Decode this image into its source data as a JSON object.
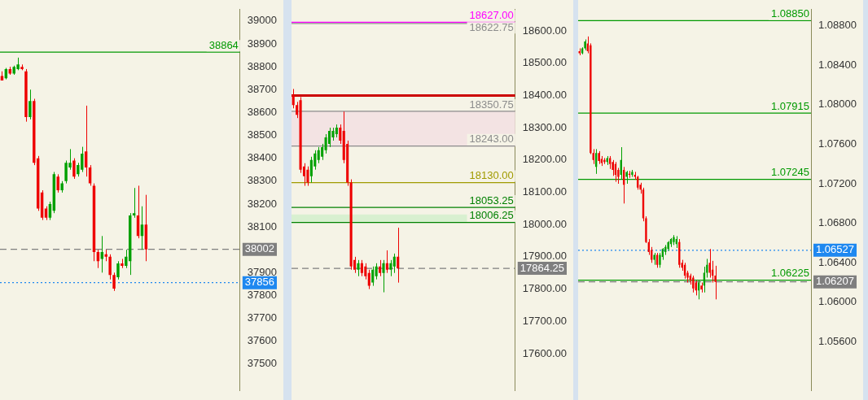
{
  "chart_data": [
    {
      "type": "candlestick",
      "tick_labels": "y",
      "categories": [
        null,
        null,
        null,
        null,
        null,
        null,
        null,
        null,
        null,
        null,
        null,
        null,
        null,
        null,
        null,
        null,
        null,
        null,
        null,
        null,
        null,
        null,
        null,
        null,
        null,
        null,
        null,
        null,
        null,
        null,
        null,
        null,
        null,
        null,
        null,
        null,
        null,
        null,
        null,
        null,
        null,
        null,
        null,
        null,
        null,
        null,
        null,
        null,
        null,
        null,
        null,
        null,
        null,
        null,
        null,
        null,
        null,
        null,
        null,
        null
      ],
      "ohlc": [
        [
          38760,
          38780,
          38740,
          38740
        ],
        [
          38750,
          38795,
          38745,
          38790
        ],
        [
          38790,
          38800,
          38765,
          38770
        ],
        [
          38770,
          38805,
          38765,
          38800
        ],
        [
          38790,
          38840,
          38785,
          38810
        ],
        [
          38800,
          38810,
          38785,
          38790
        ],
        [
          38780,
          38790,
          38560,
          38580
        ],
        [
          38580,
          38700,
          38570,
          38650
        ],
        [
          38650,
          38660,
          38370,
          38380
        ],
        [
          38400,
          38410,
          38170,
          38180
        ],
        [
          38250,
          38260,
          38130,
          38140
        ],
        [
          38180,
          38190,
          38130,
          38140
        ],
        [
          38140,
          38210,
          38130,
          38200
        ],
        [
          38170,
          38340,
          38160,
          38330
        ],
        [
          38320,
          38330,
          38250,
          38260
        ],
        [
          38260,
          38300,
          38250,
          38290
        ],
        [
          38300,
          38390,
          38290,
          38380
        ],
        [
          38360,
          38440,
          38350,
          38380
        ],
        [
          38390,
          38400,
          38310,
          38320
        ],
        [
          38330,
          38380,
          38320,
          38370
        ],
        [
          38350,
          38450,
          38340,
          38420
        ],
        [
          38430,
          38630,
          38320,
          38360
        ],
        [
          38360,
          38370,
          38280,
          38290
        ],
        [
          38280,
          38290,
          37950,
          37990
        ],
        [
          37990,
          38000,
          37920,
          37950
        ],
        [
          37960,
          38060,
          37900,
          37990
        ],
        [
          37980,
          38000,
          37950,
          37970
        ],
        [
          37970,
          37980,
          37870,
          37890
        ],
        [
          37890,
          37900,
          37820,
          37830
        ],
        [
          37880,
          37950,
          37870,
          37940
        ],
        [
          37940,
          37960,
          37920,
          37930
        ],
        [
          37930,
          38000,
          37920,
          37970
        ],
        [
          37950,
          38160,
          37890,
          38150
        ],
        [
          38150,
          38270,
          38140,
          38160
        ],
        [
          38150,
          38280,
          38050,
          38060
        ],
        [
          38060,
          38190,
          38000,
          38110
        ],
        [
          38110,
          38240,
          37950,
          38002
        ],
        null,
        null,
        null,
        null,
        null,
        null,
        null,
        null,
        null,
        null,
        null,
        null,
        null,
        null,
        null,
        null,
        null,
        null,
        null,
        null,
        null,
        null,
        null
      ],
      "colors": [
        "#ee0000",
        "#00a000",
        "#ee0000",
        "#00a000",
        "#00a000",
        "#ee0000",
        "#ee0000",
        "#00a000",
        "#ee0000",
        "#ee0000",
        "#ee0000",
        "#ee0000",
        "#00a000",
        "#00a000",
        "#ee0000",
        "#00a000",
        "#00a000",
        "#00a000",
        "#ee0000",
        "#00a000",
        "#00a000",
        "#ee0000",
        "#ee0000",
        "#ee0000",
        "#ee0000",
        "#00a000",
        "#ee0000",
        "#ee0000",
        "#ee0000",
        "#00a000",
        "#ee0000",
        "#00a000",
        "#00a000",
        "#00a000",
        "#ee0000",
        "#00a000",
        "#ee0000",
        null,
        null,
        null,
        null,
        null,
        null,
        null,
        null,
        null,
        null,
        null,
        null,
        null,
        null,
        null,
        null,
        null,
        null,
        null,
        null,
        null,
        null,
        null
      ],
      "ylim": [
        37385,
        39050
      ],
      "yticks": [
        37500,
        37600,
        37700,
        37800,
        37900,
        38100,
        38200,
        38300,
        38400,
        38500,
        38600,
        38700,
        38800,
        38900,
        39000
      ],
      "ref_lines": [
        {
          "axis": "y",
          "value": 38864,
          "label": "38864",
          "color": "#009900",
          "line_style": "solid"
        },
        {
          "axis": "y",
          "value": 38002,
          "label": "38002",
          "color": "#7f7f7f",
          "line_style": "dashed"
        },
        {
          "axis": "y",
          "value": 37856,
          "label": "37856",
          "color": "#1e88f0",
          "line_style": "dotted"
        }
      ]
    },
    {
      "type": "candlestick",
      "tick_labels": "y",
      "categories": [
        null,
        null,
        null,
        null,
        null,
        null,
        null,
        null,
        null,
        null,
        null,
        null,
        null,
        null,
        null,
        null,
        null,
        null,
        null,
        null,
        null,
        null,
        null,
        null,
        null,
        null,
        null,
        null,
        null,
        null,
        null,
        null,
        null,
        null,
        null,
        null,
        null,
        null,
        null,
        null,
        null,
        null,
        null,
        null,
        null,
        null,
        null,
        null,
        null,
        null,
        null,
        null,
        null,
        null,
        null,
        null,
        null,
        null,
        null,
        null,
        null,
        null
      ],
      "ohlc": [
        [
          18400,
          18420,
          18360,
          18370
        ],
        [
          18370,
          18380,
          18330,
          18340
        ],
        [
          18385,
          18395,
          18160,
          18170
        ],
        [
          18180,
          18190,
          18120,
          18150
        ],
        [
          18170,
          18180,
          18120,
          18130
        ],
        [
          18150,
          18210,
          18130,
          18200
        ],
        [
          18180,
          18230,
          18170,
          18220
        ],
        [
          18200,
          18240,
          18190,
          18230
        ],
        [
          18210,
          18250,
          18200,
          18240
        ],
        [
          18230,
          18280,
          18220,
          18270
        ],
        [
          18250,
          18300,
          18240,
          18290
        ],
        [
          18270,
          18300,
          18260,
          18290
        ],
        [
          18280,
          18310,
          18270,
          18300
        ],
        [
          18300,
          18310,
          18250,
          18260
        ],
        [
          18290,
          18350,
          18190,
          18200
        ],
        [
          18250,
          18260,
          18120,
          18130
        ],
        [
          18130,
          18140,
          17860,
          17870
        ],
        [
          17890,
          17900,
          17850,
          17860
        ],
        [
          17860,
          17890,
          17840,
          17880
        ],
        [
          17880,
          17890,
          17840,
          17850
        ],
        [
          17870,
          17880,
          17830,
          17840
        ],
        [
          17850,
          17860,
          17800,
          17810
        ],
        [
          17820,
          17870,
          17810,
          17860
        ],
        [
          17840,
          17880,
          17830,
          17870
        ],
        [
          17870,
          17890,
          17840,
          17850
        ],
        [
          17850,
          17890,
          17790,
          17880
        ],
        [
          17880,
          17920,
          17850,
          17860
        ],
        [
          17860,
          17890,
          17840,
          17880
        ],
        [
          17870,
          17910,
          17850,
          17900
        ],
        [
          17900,
          17990,
          17820,
          17864.25
        ],
        null,
        null,
        null,
        null,
        null,
        null,
        null,
        null,
        null,
        null,
        null,
        null,
        null,
        null,
        null,
        null,
        null,
        null,
        null,
        null,
        null,
        null,
        null,
        null,
        null,
        null,
        null,
        null,
        null,
        null,
        null,
        null
      ],
      "colors": [
        "#ee0000",
        "#ee0000",
        "#ee0000",
        "#ee0000",
        "#ee0000",
        "#00a000",
        "#00a000",
        "#00a000",
        "#00a000",
        "#00a000",
        "#00a000",
        "#00a000",
        "#00a000",
        "#ee0000",
        "#ee0000",
        "#ee0000",
        "#ee0000",
        "#ee0000",
        "#00a000",
        "#ee0000",
        "#ee0000",
        "#ee0000",
        "#00a000",
        "#00a000",
        "#ee0000",
        "#00a000",
        "#ee0000",
        "#00a000",
        "#00a000",
        "#ee0000",
        null,
        null,
        null,
        null,
        null,
        null,
        null,
        null,
        null,
        null,
        null,
        null,
        null,
        null,
        null,
        null,
        null,
        null,
        null,
        null,
        null,
        null,
        null,
        null,
        null,
        null,
        null,
        null,
        null,
        null,
        null,
        null
      ],
      "ylim": [
        17486,
        18666
      ],
      "yticks": [
        {
          "value": 17600,
          "label": "17600.00"
        },
        {
          "value": 17700,
          "label": "17700.00"
        },
        {
          "value": 17800,
          "label": "17800.00"
        },
        {
          "value": 17900,
          "label": "17900.00"
        },
        {
          "value": 18000,
          "label": "18000.00"
        },
        {
          "value": 18100,
          "label": "18100.00"
        },
        {
          "value": 18200,
          "label": "18200.00"
        },
        {
          "value": 18300,
          "label": "18300.00"
        },
        {
          "value": 18400,
          "label": "18400.00"
        },
        {
          "value": 18500,
          "label": "18500.00"
        },
        {
          "value": 18600,
          "label": "18600.00"
        }
      ],
      "bands": [
        {
          "axis": "y",
          "from": 18243,
          "to": 18350.75,
          "color": "#f3e3e3"
        },
        {
          "axis": "y",
          "from": 18006.25,
          "to": 18030,
          "color": "#d8f0d0"
        }
      ],
      "ref_lines": [
        {
          "axis": "y",
          "value": 18627,
          "label": "18627.00",
          "color": "#ff00ff",
          "line_style": "solid"
        },
        {
          "axis": "y",
          "value": 18622.75,
          "label": "18622.75",
          "color": "#8c8c8c",
          "line_style": "solid"
        },
        {
          "axis": "y",
          "value": 18400,
          "color": "#cc0000",
          "line_style": "solid"
        },
        {
          "axis": "y",
          "value": 18350.75,
          "label": "18350.75",
          "color": "#8c8c8c",
          "line_style": "solid"
        },
        {
          "axis": "y",
          "value": 18243,
          "label": "18243.00",
          "color": "#8c8c8c",
          "line_style": "solid"
        },
        {
          "axis": "y",
          "value": 18130,
          "label": "18130.00",
          "color": "#a09a00",
          "line_style": "solid"
        },
        {
          "axis": "y",
          "value": 18053.25,
          "label": "18053.25",
          "color": "#008000",
          "line_style": "solid"
        },
        {
          "axis": "y",
          "value": 18006.25,
          "label": "18006.25",
          "color": "#008000",
          "line_style": "solid"
        },
        {
          "axis": "y",
          "value": 17864.25,
          "label": "17864.25",
          "color": "#7f7f7f",
          "line_style": "dashed"
        }
      ]
    },
    {
      "type": "candlestick",
      "tick_labels": "y",
      "categories": [
        null,
        null,
        null,
        null,
        null,
        null,
        null,
        null,
        null,
        null,
        null,
        null,
        null,
        null,
        null,
        null,
        null,
        null,
        null,
        null,
        null,
        null,
        null,
        null,
        null,
        null,
        null,
        null,
        null,
        null,
        null,
        null,
        null,
        null,
        null,
        null,
        null,
        null,
        null,
        null,
        null,
        null,
        null,
        null,
        null,
        null,
        null,
        null,
        null,
        null,
        null,
        null,
        null,
        null,
        null,
        null,
        null,
        null,
        null,
        null,
        null,
        null,
        null,
        null,
        null,
        null,
        null,
        null,
        null,
        null,
        null,
        null,
        null,
        null,
        null,
        null,
        null,
        null,
        null,
        null,
        null,
        null,
        null,
        null
      ],
      "ohlc": [
        [
          1.0854,
          1.0857,
          1.085,
          1.0852
        ],
        [
          1.0852,
          1.0858,
          1.0851,
          1.0857
        ],
        [
          1.0857,
          1.0866,
          1.0855,
          1.0864
        ],
        [
          1.0862,
          1.0869,
          1.0852,
          1.0854
        ],
        [
          1.086,
          1.0862,
          1.075,
          1.0751
        ],
        [
          1.0751,
          1.0755,
          1.074,
          1.0744
        ],
        [
          1.0737,
          1.0755,
          1.073,
          1.0751
        ],
        [
          1.0751,
          1.0753,
          1.074,
          1.0743
        ],
        [
          1.0745,
          1.0748,
          1.0738,
          1.0741
        ],
        [
          1.0744,
          1.0746,
          1.074,
          1.0742
        ],
        [
          1.0742,
          1.0748,
          1.0739,
          1.0746
        ],
        [
          1.0746,
          1.0748,
          1.0735,
          1.074
        ],
        [
          1.0742,
          1.0744,
          1.0728,
          1.0734
        ],
        [
          1.074,
          1.0742,
          1.0722,
          1.0729
        ],
        [
          1.0734,
          1.0736,
          1.072,
          1.0727
        ],
        [
          1.0729,
          1.0757,
          1.0725,
          1.0744
        ],
        [
          1.0734,
          1.0737,
          1.07,
          1.0719
        ],
        [
          1.0727,
          1.0733,
          1.072,
          1.0732
        ],
        [
          1.073,
          1.0733,
          1.0726,
          1.0729
        ],
        [
          1.0729,
          1.0734,
          1.0727,
          1.0732
        ],
        [
          1.0729,
          1.0732,
          1.0724,
          1.0727
        ],
        [
          1.0727,
          1.0728,
          1.0714,
          1.0716
        ],
        [
          1.0719,
          1.0721,
          1.071,
          1.0714
        ],
        [
          1.0714,
          1.0716,
          1.0682,
          1.0685
        ],
        [
          1.0685,
          1.0687,
          1.066,
          1.0661
        ],
        [
          1.0661,
          1.0664,
          1.0648,
          1.0651
        ],
        [
          1.0653,
          1.0656,
          1.064,
          1.0643
        ],
        [
          1.0643,
          1.065,
          1.0638,
          1.0648
        ],
        [
          1.0648,
          1.065,
          1.0635,
          1.0638
        ],
        [
          1.0638,
          1.065,
          1.0635,
          1.0648
        ],
        [
          1.0646,
          1.0655,
          1.0643,
          1.0654
        ],
        [
          1.0651,
          1.0658,
          1.0648,
          1.0656
        ],
        [
          1.0654,
          1.0662,
          1.0652,
          1.0661
        ],
        [
          1.0659,
          1.0665,
          1.0656,
          1.0664
        ],
        [
          1.0661,
          1.0668,
          1.0658,
          1.0666
        ],
        [
          1.0659,
          1.0667,
          1.0655,
          1.0664
        ],
        [
          1.0661,
          1.0664,
          1.0635,
          1.0638
        ],
        [
          1.064,
          1.0643,
          1.0632,
          1.0635
        ],
        [
          1.0638,
          1.064,
          1.0624,
          1.0627
        ],
        [
          1.063,
          1.0632,
          1.062,
          1.0625
        ],
        [
          1.0627,
          1.0629,
          1.0618,
          1.0622
        ],
        [
          1.0625,
          1.0627,
          1.061,
          1.0614
        ],
        [
          1.062,
          1.0622,
          1.0607,
          1.0612
        ],
        [
          1.0612,
          1.0622,
          1.0603,
          1.062
        ],
        [
          1.0617,
          1.062,
          1.061,
          1.0613
        ],
        [
          1.0617,
          1.0636,
          1.061,
          1.063
        ],
        [
          1.063,
          1.0644,
          1.0625,
          1.0638
        ],
        [
          1.064,
          1.0654,
          1.0625,
          1.063
        ],
        [
          1.0633,
          1.0642,
          1.062,
          1.0627
        ],
        [
          1.0627,
          1.0637,
          1.0603,
          1.06207
        ],
        null,
        null,
        null,
        null,
        null,
        null,
        null,
        null,
        null,
        null,
        null,
        null,
        null,
        null,
        null,
        null,
        null,
        null,
        null,
        null,
        null,
        null,
        null,
        null,
        null,
        null,
        null,
        null,
        null,
        null,
        null,
        null,
        null,
        null
      ],
      "colors": [
        "#ee0000",
        "#00a000",
        "#00a000",
        "#ee0000",
        "#ee0000",
        "#ee0000",
        "#00a000",
        "#ee0000",
        "#ee0000",
        "#ee0000",
        "#00a000",
        "#ee0000",
        "#ee0000",
        "#ee0000",
        "#ee0000",
        "#00a000",
        "#ee0000",
        "#00a000",
        "#ee0000",
        "#00a000",
        "#ee0000",
        "#ee0000",
        "#ee0000",
        "#ee0000",
        "#ee0000",
        "#ee0000",
        "#ee0000",
        "#00a000",
        "#ee0000",
        "#00a000",
        "#00a000",
        "#00a000",
        "#00a000",
        "#00a000",
        "#00a000",
        "#00a000",
        "#ee0000",
        "#ee0000",
        "#ee0000",
        "#ee0000",
        "#ee0000",
        "#ee0000",
        "#ee0000",
        "#00a000",
        "#ee0000",
        "#00a000",
        "#00a000",
        "#ee0000",
        "#ee0000",
        "#ee0000",
        null,
        null,
        null,
        null,
        null,
        null,
        null,
        null,
        null,
        null,
        null,
        null,
        null,
        null,
        null,
        null,
        null,
        null,
        null,
        null,
        null,
        null,
        null,
        null,
        null,
        null,
        null,
        null,
        null,
        null,
        null,
        null,
        null,
        null
      ],
      "ylim": [
        1.05109,
        1.08962
      ],
      "yticks": [
        {
          "value": 1.056,
          "label": "1.05600"
        },
        {
          "value": 1.06,
          "label": "1.06000"
        },
        {
          "value": 1.064,
          "label": "1.06400"
        },
        {
          "value": 1.068,
          "label": "1.06800"
        },
        {
          "value": 1.072,
          "label": "1.07200"
        },
        {
          "value": 1.076,
          "label": "1.07600"
        },
        {
          "value": 1.08,
          "label": "1.08000"
        },
        {
          "value": 1.084,
          "label": "1.08400"
        },
        {
          "value": 1.088,
          "label": "1.08800"
        }
      ],
      "ref_lines": [
        {
          "axis": "y",
          "value": 1.0885,
          "label": "1.08850",
          "color": "#009900",
          "line_style": "solid"
        },
        {
          "axis": "y",
          "value": 1.07915,
          "label": "1.07915",
          "color": "#009900",
          "line_style": "solid"
        },
        {
          "axis": "y",
          "value": 1.07245,
          "label": "1.07245",
          "color": "#009900",
          "line_style": "solid"
        },
        {
          "axis": "y",
          "value": 1.06225,
          "label": "1.06225",
          "color": "#009900",
          "line_style": "solid"
        },
        {
          "axis": "y",
          "value": 1.06527,
          "label": "1.06527",
          "color": "#1e88f0",
          "line_style": "dotted"
        },
        {
          "axis": "y",
          "value": 1.06207,
          "label": "1.06207",
          "color": "#7f7f7f",
          "line_style": "dashed"
        }
      ]
    }
  ]
}
